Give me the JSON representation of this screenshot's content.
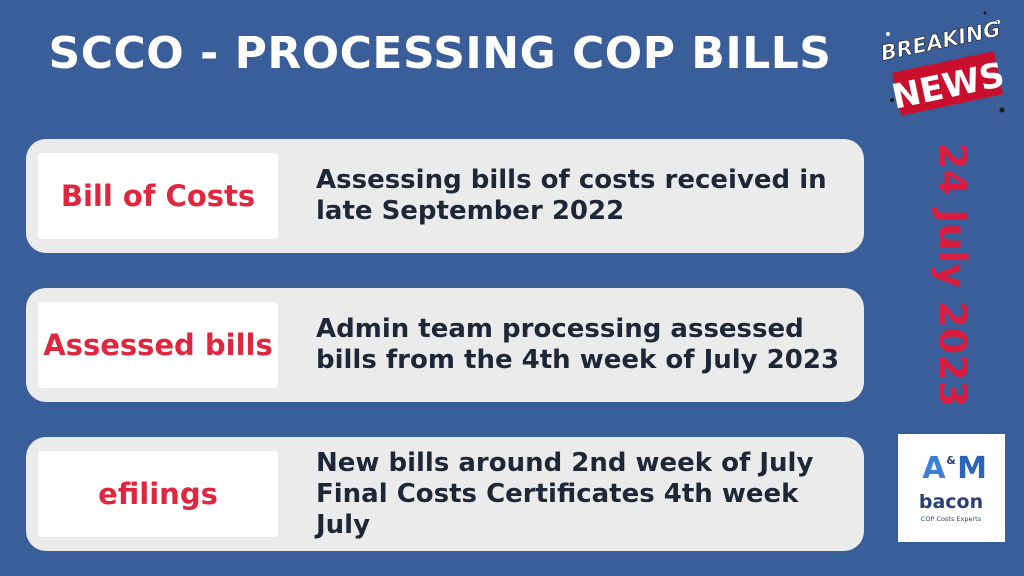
{
  "title": "SCCO - PROCESSING COP BILLS",
  "badge": {
    "line1": "BREAKING",
    "line2": "NEWS"
  },
  "date": "24 July 2023",
  "rows": [
    {
      "label": "Bill of Costs",
      "lines": [
        "Assessing bills of costs received in",
        "late September 2022"
      ]
    },
    {
      "label": "Assessed bills",
      "lines": [
        "Admin team processing assessed",
        "bills from the 4th week of July 2023"
      ]
    },
    {
      "label": "efilings",
      "lines": [
        "New bills around 2nd week of July",
        "Final Costs Certificates 4th week July"
      ]
    }
  ],
  "logo": {
    "mark_left": "A",
    "mark_amp": "&",
    "mark_right": "M",
    "name": "bacon",
    "tagline": "COP Costs Experts"
  },
  "colors": {
    "background": "#3a5e99",
    "label_text": "#e0263f",
    "date_text": "#d81b3f",
    "badge_red": "#c8102e",
    "row_bg": "#ebebeb"
  }
}
